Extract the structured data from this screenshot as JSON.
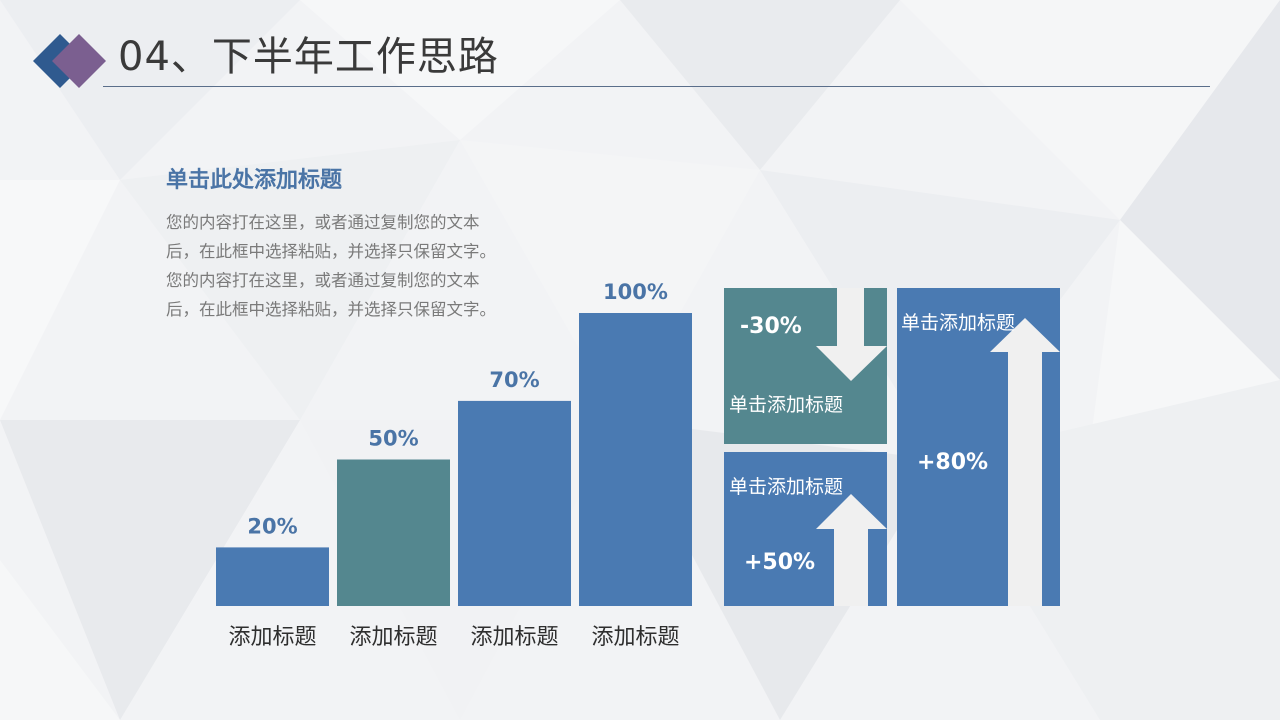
{
  "header": {
    "title": "04、下半年工作思路"
  },
  "intro": {
    "heading": "单击此处添加标题",
    "lines": [
      "您的内容打在这里，或者通过复制您的文本",
      "后，在此框中选择粘贴，并选择只保留文字。",
      "您的内容打在这里，或者通过复制您的文本",
      "后，在此框中选择粘贴，并选择只保留文字。"
    ]
  },
  "colors": {
    "blue": "#4a7ab2",
    "teal": "#54878f",
    "arrow": "#f0f0f0",
    "label_blue": "#4a74a6"
  },
  "chart_data": {
    "type": "bar",
    "categories": [
      "添加标题",
      "添加标题",
      "添加标题",
      "添加标题"
    ],
    "values": [
      20,
      50,
      70,
      100
    ],
    "value_labels": [
      "20%",
      "50%",
      "70%",
      "100%"
    ],
    "bar_colors": [
      "#4a7ab2",
      "#54878f",
      "#4a7ab2",
      "#4a7ab2"
    ],
    "ylim": [
      0,
      100
    ],
    "grid": false,
    "legend": "none"
  },
  "cards": {
    "down": {
      "value": "-30%",
      "label": "单击添加标题",
      "direction": "down",
      "color": "#54878f"
    },
    "up_small": {
      "value": "+50%",
      "label": "单击添加标题",
      "direction": "up",
      "color": "#4a7ab2"
    },
    "up_big": {
      "value": "+80%",
      "label": "单击添加标题",
      "direction": "up",
      "color": "#4a7ab2"
    }
  }
}
